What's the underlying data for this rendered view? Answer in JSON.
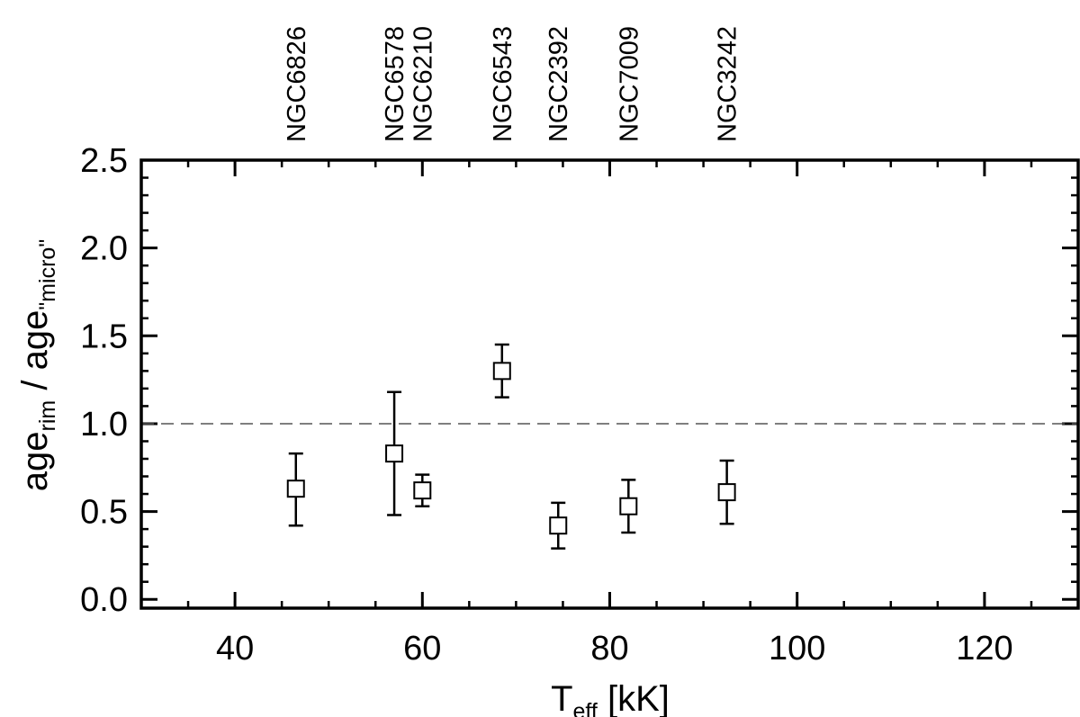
{
  "chart_data": {
    "type": "scatter",
    "title": "",
    "xlabel": {
      "main": "T",
      "sub": "eff",
      "unit": " [kK]"
    },
    "ylabel": {
      "p1": "age",
      "sub1": "rim",
      "p2": " / age",
      "sub2": "\"micro\""
    },
    "xlim": [
      30,
      130
    ],
    "ylim": [
      -0.05,
      2.5
    ],
    "xticks": [
      40,
      60,
      80,
      100,
      120
    ],
    "xtick_labels": [
      "40",
      "60",
      "80",
      "100",
      "120"
    ],
    "yticks": [
      0.0,
      0.5,
      1.0,
      1.5,
      2.0,
      2.5
    ],
    "ytick_labels": [
      "0.0",
      "0.5",
      "1.0",
      "1.5",
      "2.0",
      "2.5"
    ],
    "x_minor_step": 5,
    "y_minor_step": 0.1,
    "reference_line": {
      "y": 1.0,
      "style": "dashed"
    },
    "marker": "open-square",
    "grid": false,
    "points": [
      {
        "name": "NGC6826",
        "x": 46.5,
        "y": 0.63,
        "err_low": 0.42,
        "err_high": 0.83
      },
      {
        "name": "NGC6578",
        "x": 57.0,
        "y": 0.83,
        "err_low": 0.48,
        "err_high": 1.18
      },
      {
        "name": "NGC6210",
        "x": 60.0,
        "y": 0.62,
        "err_low": 0.53,
        "err_high": 0.71
      },
      {
        "name": "NGC6543",
        "x": 68.5,
        "y": 1.3,
        "err_low": 1.15,
        "err_high": 1.45
      },
      {
        "name": "NGC2392",
        "x": 74.5,
        "y": 0.42,
        "err_low": 0.29,
        "err_high": 0.55
      },
      {
        "name": "NGC7009",
        "x": 82.0,
        "y": 0.53,
        "err_low": 0.38,
        "err_high": 0.68
      },
      {
        "name": "NGC3242",
        "x": 92.5,
        "y": 0.61,
        "err_low": 0.43,
        "err_high": 0.79
      }
    ]
  }
}
